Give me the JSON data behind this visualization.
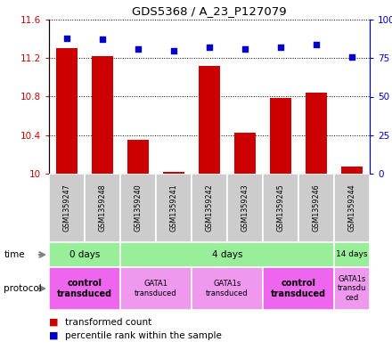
{
  "title": "GDS5368 / A_23_P127079",
  "samples": [
    "GSM1359247",
    "GSM1359248",
    "GSM1359240",
    "GSM1359241",
    "GSM1359242",
    "GSM1359243",
    "GSM1359245",
    "GSM1359246",
    "GSM1359244"
  ],
  "transformed_counts": [
    11.3,
    11.22,
    10.35,
    10.02,
    11.12,
    10.43,
    10.79,
    10.84,
    10.07
  ],
  "percentile_ranks": [
    88,
    87,
    81,
    80,
    82,
    81,
    82,
    84,
    76
  ],
  "ylim_left": [
    10,
    11.6
  ],
  "ylim_right": [
    0,
    100
  ],
  "yticks_left": [
    10,
    10.4,
    10.8,
    11.2,
    11.6
  ],
  "yticks_right": [
    0,
    25,
    50,
    75,
    100
  ],
  "bar_color": "#cc0000",
  "dot_color": "#0000cc",
  "bar_width": 0.6,
  "time_groups": [
    {
      "label": "0 days",
      "start": 0,
      "end": 2,
      "color": "#99ee99"
    },
    {
      "label": "4 days",
      "start": 2,
      "end": 8,
      "color": "#99ee99"
    },
    {
      "label": "14 days",
      "start": 8,
      "end": 9,
      "color": "#99ee99"
    }
  ],
  "protocol_groups": [
    {
      "label": "control\ntransduced",
      "start": 0,
      "end": 2,
      "color": "#ee66ee",
      "bold": true
    },
    {
      "label": "GATA1\ntransduced",
      "start": 2,
      "end": 4,
      "color": "#ee99ee",
      "bold": false
    },
    {
      "label": "GATA1s\ntransduced",
      "start": 4,
      "end": 6,
      "color": "#ee99ee",
      "bold": false
    },
    {
      "label": "control\ntransduced",
      "start": 6,
      "end": 8,
      "color": "#ee66ee",
      "bold": true
    },
    {
      "label": "GATA1s\ntransdu\nced",
      "start": 8,
      "end": 9,
      "color": "#ee99ee",
      "bold": false
    }
  ],
  "sample_bg_color": "#cccccc",
  "grid_color": "#000000"
}
